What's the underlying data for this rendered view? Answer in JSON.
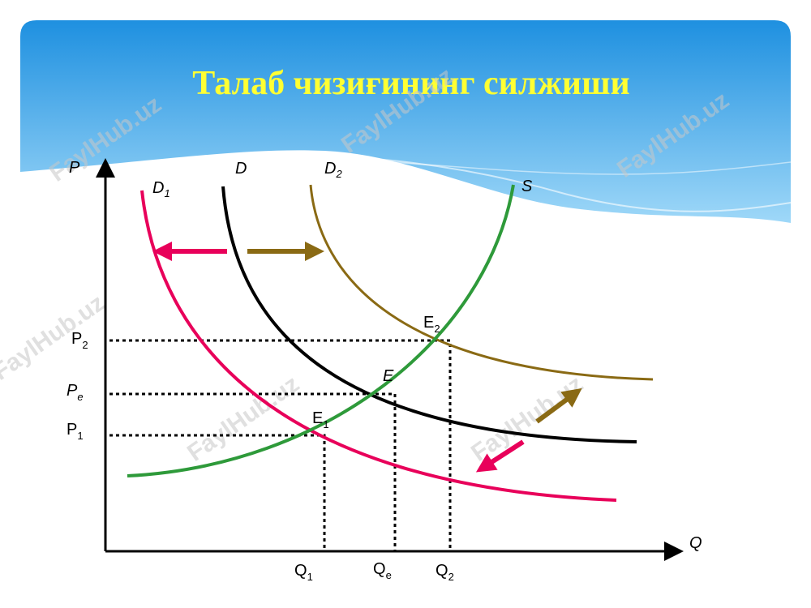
{
  "title": "Талаб чизиғининг силжиши",
  "watermark": "FaylHub.uz",
  "axes": {
    "y": "P",
    "x": "Q"
  },
  "curves": {
    "d1": {
      "base": "D",
      "sub": "1"
    },
    "d": {
      "base": "D"
    },
    "d2": {
      "base": "D",
      "sub": "2"
    },
    "s": {
      "base": "S"
    }
  },
  "points": {
    "e": {
      "base": "E"
    },
    "e1": {
      "base": "E",
      "sub": "1"
    },
    "e2": {
      "base": "E",
      "sub": "2"
    }
  },
  "prices": {
    "p2": {
      "base": "P",
      "sub": "2"
    },
    "pe": {
      "base": "P",
      "sub": "e"
    },
    "p1": {
      "base": "P",
      "sub": "1"
    }
  },
  "quantities": {
    "q1": {
      "base": "Q",
      "sub": "1"
    },
    "qe": {
      "base": "Q",
      "sub": "e"
    },
    "q2": {
      "base": "Q",
      "sub": "2"
    }
  }
}
